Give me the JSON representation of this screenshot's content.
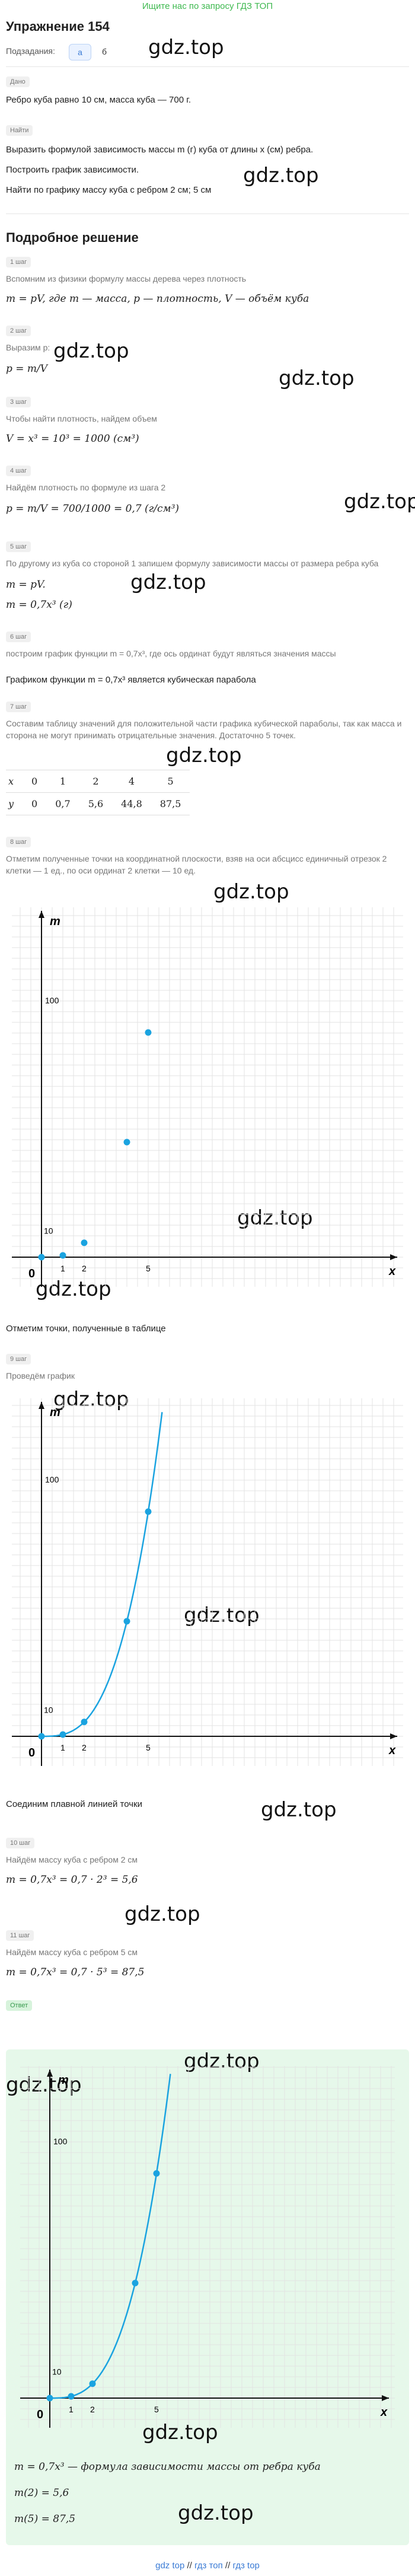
{
  "top_banner": "Ищите нас по запросу ГДЗ ТОП",
  "title": "Упражнение 154",
  "subtasks": {
    "label": "Подзадания:",
    "items": [
      "а",
      "б"
    ]
  },
  "watermark": "gdz.top",
  "given": {
    "label": "Дано",
    "text": "Ребро куба равно 10 см, масса куба — 700 г."
  },
  "find": {
    "label": "Найти",
    "lines": [
      "Выразить формулой зависимость массы m (г) куба от длины x (см) ребра.",
      "Построить график зависимости.",
      "Найти по графику массу куба с ребром 2 см; 5 см"
    ]
  },
  "solution_title": "Подробное решение",
  "steps": [
    {
      "label": "1 шаг",
      "text": "Вспомним из физики формулу массы дерева через плотность",
      "math": "m = pV, где m — масса, p — плотность, V — объём куба"
    },
    {
      "label": "2 шаг",
      "text": "Выразим p:",
      "math": "p = m/V"
    },
    {
      "label": "3 шаг",
      "text": "Чтобы найти плотность, найдем объем",
      "math": "V = x³ = 10³ = 1000 (см³)"
    },
    {
      "label": "4 шаг",
      "text": "Найдём плотность по формуле из шага 2",
      "math": "p = m/V = 700/1000 = 0,7 (г/см³)"
    },
    {
      "label": "5 шаг",
      "text": "По другому из куба со стороной 1 запишем формулу зависимости массы от размера ребра куба",
      "math1": "m = pV.",
      "math2": "m = 0,7x³ (г)"
    },
    {
      "label": "6 шаг",
      "text": "построим график функции m = 0,7x³, где ось ординат будут являться значения массы",
      "text2": "Графиком функции m = 0,7x³ является кубическая парабола"
    },
    {
      "label": "7 шаг",
      "text": "Составим таблицу значений для положительной части графика кубической параболы, так как масса и сторона не могут принимать отрицательные значения. Достаточно 5 точек."
    },
    {
      "label": "8 шаг",
      "text": "Отметим полученные точки на координатной плоскости, взяв на оси абсцисс единичный отрезок 2 клетки — 1 ед., по оси ординат 2 клетки — 10 ед.",
      "after": "Отметим точки, полученные в таблице"
    },
    {
      "label": "9 шаг",
      "text": "Проведём график",
      "after": "Соединим плавной линией точки"
    },
    {
      "label": "10 шаг",
      "text": "Найдём массу куба с ребром 2 см",
      "math": "m = 0,7x³ = 0,7 · 2³ = 5,6"
    },
    {
      "label": "11 шаг",
      "text": "Найдём массу куба с ребром 5 см",
      "math": "m = 0,7x³ = 0,7 · 5³ = 87,5"
    }
  ],
  "table": {
    "x": [
      "x",
      "0",
      "1",
      "2",
      "4",
      "5"
    ],
    "y": [
      "y",
      "0",
      "0,7",
      "5,6",
      "44,8",
      "87,5"
    ]
  },
  "answer": {
    "label": "Ответ",
    "lines": [
      "m = 0,7x³ — формула зависимости массы от ребра куба",
      "m(2) = 5,6",
      "m(5) = 87,5"
    ]
  },
  "chart_labels": {
    "y": "m",
    "x": "x",
    "origin": "0",
    "tick1": "1",
    "tick2": "2",
    "tick5": "5",
    "tick10": "10",
    "tick100": "100"
  },
  "chart_data": [
    {
      "type": "scatter",
      "xlabel": "x",
      "ylabel": "m",
      "x": [
        0,
        1,
        2,
        4,
        5
      ],
      "values": [
        0,
        0.7,
        5.6,
        44.8,
        87.5
      ],
      "color": "#1aa3e0"
    },
    {
      "type": "line",
      "xlabel": "x",
      "ylabel": "m",
      "x": [
        0,
        1,
        2,
        4,
        5
      ],
      "values": [
        0,
        0.7,
        5.6,
        44.8,
        87.5
      ],
      "color": "#1aa3e0"
    },
    {
      "type": "line",
      "xlabel": "x",
      "ylabel": "m",
      "x": [
        0,
        1,
        2,
        4,
        5
      ],
      "values": [
        0,
        0.7,
        5.6,
        44.8,
        87.5
      ],
      "color": "#1aa3e0"
    }
  ],
  "footer": {
    "a": "gdz top",
    "sep": " // ",
    "b": "гдз топ",
    "c": "гдз top"
  },
  "colors": {
    "accent": "#3a7bd5",
    "green": "#3fb950",
    "answer_bg": "#e6f8ea",
    "curve": "#1aa3e0"
  }
}
